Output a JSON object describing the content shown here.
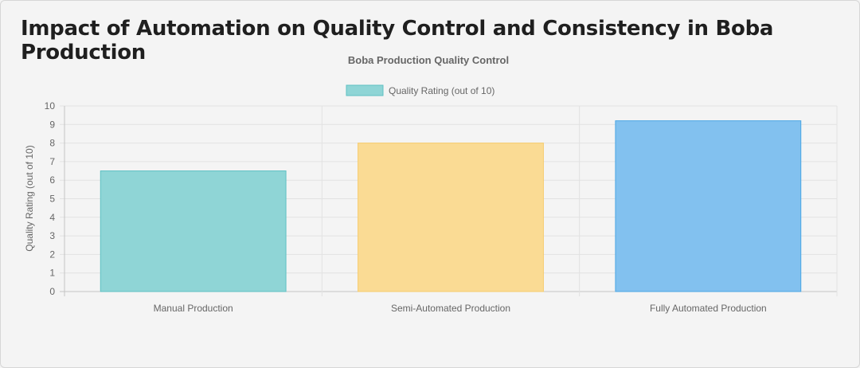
{
  "page": {
    "title": "Impact of Automation on Quality Control and Consistency in Boba Production"
  },
  "chart_data": {
    "type": "bar",
    "title": "Boba Production Quality Control",
    "xlabel": "",
    "ylabel": "Quality Rating (out of 10)",
    "ylim": [
      0,
      10
    ],
    "yticks": [
      0,
      1,
      2,
      3,
      4,
      5,
      6,
      7,
      8,
      9,
      10
    ],
    "grid": true,
    "legend_position": "top-center",
    "categories": [
      "Manual Production",
      "Semi-Automated Production",
      "Fully Automated Production"
    ],
    "series": [
      {
        "name": "Quality Rating (out of 10)",
        "values": [
          6.5,
          8.0,
          9.2
        ]
      }
    ],
    "colors": {
      "fills": [
        "#8fd5d6",
        "#fadb94",
        "#82c1ef"
      ],
      "borders": [
        "#5fc1c3",
        "#f6cb6c",
        "#4aa6e4"
      ]
    }
  }
}
